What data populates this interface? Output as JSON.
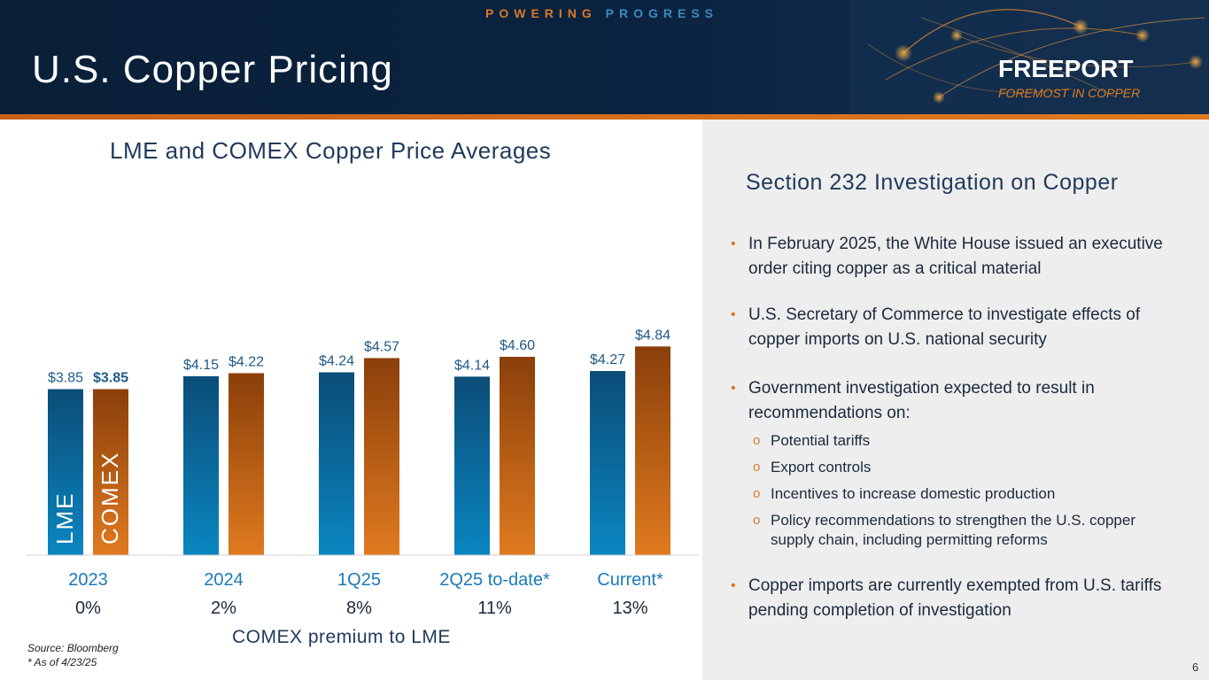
{
  "header": {
    "tagline_part1": "POWERING",
    "tagline_part2": "PROGRESS",
    "title": "U.S. Copper Pricing",
    "logo_name": "FREEPORT",
    "logo_sub": "FOREMOST IN COPPER"
  },
  "colors": {
    "lme": "#0a5a8a",
    "comex": "#c8601a",
    "accent": "#d9782a",
    "navy": "#0b2340"
  },
  "chart_data": {
    "type": "bar",
    "title": "LME and COMEX Copper Price Averages",
    "categories": [
      "2023",
      "2024",
      "1Q25",
      "2Q25 to-date*",
      "Current*"
    ],
    "series": [
      {
        "name": "LME",
        "values": [
          3.85,
          4.15,
          4.24,
          4.14,
          4.27
        ],
        "labels": [
          "$3.85",
          "$4.15",
          "$4.24",
          "$4.14",
          "$4.27"
        ]
      },
      {
        "name": "COMEX",
        "values": [
          3.85,
          4.22,
          4.57,
          4.6,
          4.84
        ],
        "labels": [
          "$3.85",
          "$4.22",
          "$4.57",
          "$4.60",
          "$4.84"
        ]
      }
    ],
    "premium": [
      "0%",
      "2%",
      "8%",
      "11%",
      "13%"
    ],
    "premium_title": "COMEX premium to LME",
    "ylim": [
      0,
      5.1
    ]
  },
  "source": {
    "line1": "Source: Bloomberg",
    "line2": "* As of 4/23/25"
  },
  "panel": {
    "title": "Section 232 Investigation on Copper",
    "bullets": [
      "In February 2025, the White House issued an executive order citing copper as a critical material",
      "U.S. Secretary of Commerce to investigate effects of copper imports on U.S. national security",
      "Government investigation expected to result in recommendations on:",
      "Copper imports are currently exempted from U.S. tariffs pending completion of investigation"
    ],
    "subbullets": [
      "Potential tariffs",
      "Export controls",
      "Incentives to increase domestic production",
      "Policy recommendations to strengthen the U.S. copper supply chain, including permitting reforms"
    ],
    "bullet_glyph": "•",
    "sub_glyph": "o"
  },
  "page_number": "6"
}
